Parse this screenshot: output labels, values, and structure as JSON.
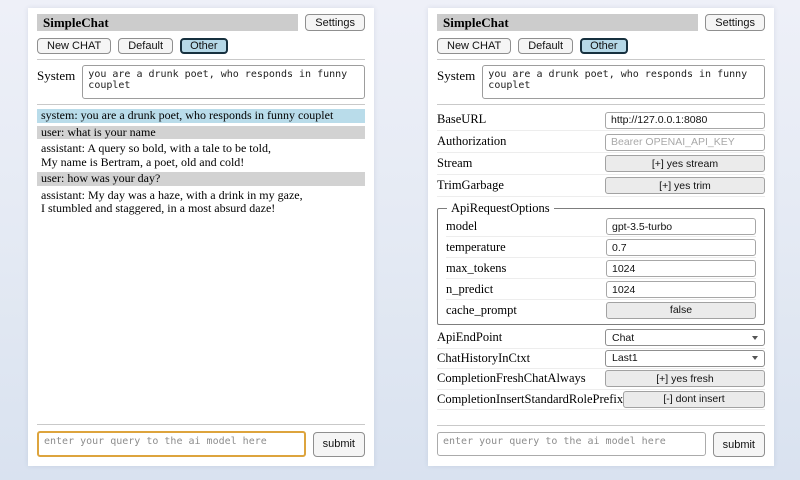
{
  "header": {
    "title": "SimpleChat",
    "settings_button": "Settings"
  },
  "toolbar": {
    "new_chat": "New CHAT",
    "default": "Default",
    "other": "Other",
    "active_button": "Other"
  },
  "system_prompt": {
    "label": "System",
    "value": "you are a drunk poet, who responds in funny couplet"
  },
  "chat": {
    "messages": [
      {
        "role": "system",
        "text": "system: you are a drunk poet, who responds in funny couplet"
      },
      {
        "role": "user",
        "text": "user: what is your name"
      },
      {
        "role": "assistant",
        "text": "assistant: A query so bold, with a tale to be told,\nMy name is Bertram, a poet, old and cold!"
      },
      {
        "role": "user",
        "text": "user: how was your day?"
      },
      {
        "role": "assistant",
        "text": "assistant: My day was a haze, with a drink in my gaze,\nI stumbled and staggered, in a most absurd daze!"
      }
    ]
  },
  "query": {
    "placeholder": "enter your query to the ai model here",
    "submit": "submit"
  },
  "settings": {
    "base_url": {
      "label": "BaseURL",
      "value": "http://127.0.0.1:8080"
    },
    "authorization": {
      "label": "Authorization",
      "placeholder": "Bearer OPENAI_API_KEY"
    },
    "stream": {
      "label": "Stream",
      "button": "[+] yes stream"
    },
    "trim_garbage": {
      "label": "TrimGarbage",
      "button": "[+] yes trim"
    },
    "api_request_options": {
      "legend": "ApiRequestOptions",
      "model": {
        "label": "model",
        "value": "gpt-3.5-turbo"
      },
      "temperature": {
        "label": "temperature",
        "value": "0.7"
      },
      "max_tokens": {
        "label": "max_tokens",
        "value": "1024"
      },
      "n_predict": {
        "label": "n_predict",
        "value": "1024"
      },
      "cache_prompt": {
        "label": "cache_prompt",
        "button": "false"
      }
    },
    "api_endpoint": {
      "label": "ApiEndPoint",
      "value": "Chat"
    },
    "chat_history_in_ctxt": {
      "label": "ChatHistoryInCtxt",
      "value": "Last1"
    },
    "completion_fresh_chat_always": {
      "label": "CompletionFreshChatAlways",
      "button": "[+] yes fresh"
    },
    "completion_insert_standard_role_prefix": {
      "label": "CompletionInsertStandardRolePrefix",
      "button": "[-] dont insert"
    }
  },
  "colors": {
    "titlebar_bg": "#cccccc",
    "active_tab_bg": "#b5d8e7",
    "system_msg_bg": "#b9dcea",
    "user_msg_bg": "#d2d2d2",
    "query_focus_border": "#dda43d"
  }
}
